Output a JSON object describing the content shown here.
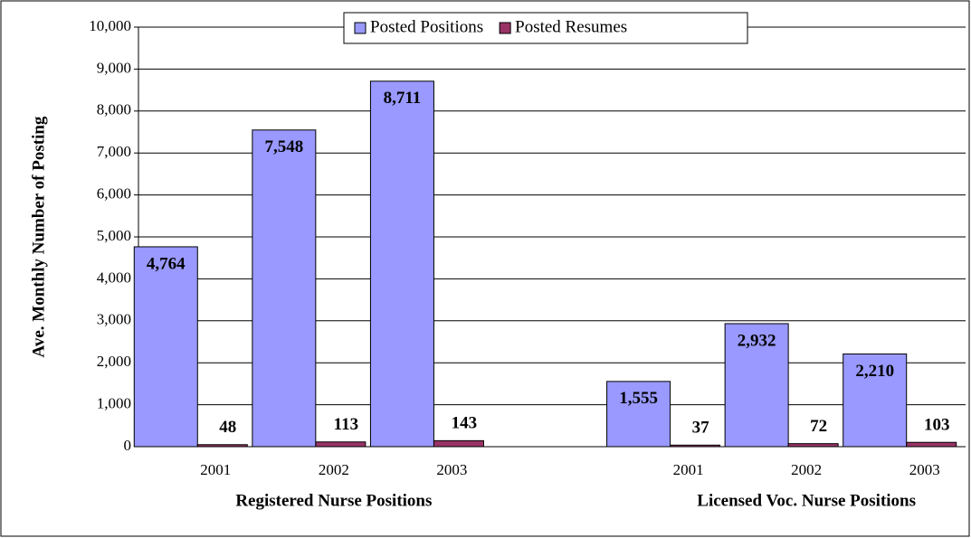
{
  "chart_data": {
    "type": "bar",
    "y_label": "Ave. Monthly Number of Posting",
    "categories": [
      "2001",
      "2002",
      "2003",
      null,
      "2001",
      "2002",
      "2003"
    ],
    "group_labels": [
      "Registered Nurse Positions",
      "Licensed Voc. Nurse Positions"
    ],
    "series": [
      {
        "name": "Posted Positions",
        "color": "#9999ff",
        "values": [
          4764,
          7548,
          8711,
          null,
          1555,
          2932,
          2210
        ],
        "value_labels": [
          "4,764",
          "7,548",
          "8,711",
          null,
          "1,555",
          "2,932",
          "2,210"
        ]
      },
      {
        "name": "Posted Resumes",
        "color": "#993366",
        "values": [
          48,
          113,
          143,
          null,
          37,
          72,
          103
        ]
      }
    ],
    "ylim": [
      0,
      10000
    ],
    "yticks": [
      0,
      {
        "value": 1000,
        "label": "1,000"
      },
      {
        "value": 2000,
        "label": "2,000"
      },
      {
        "value": 3000,
        "label": "3,000"
      },
      {
        "value": 4000,
        "label": "4,000"
      },
      {
        "value": 5000,
        "label": "5,000"
      },
      {
        "value": 6000,
        "label": "6,000"
      },
      {
        "value": 7000,
        "label": "7,000"
      },
      {
        "value": 8000,
        "label": "8,000"
      },
      {
        "value": 9000,
        "label": "9,000"
      },
      {
        "value": 10000,
        "label": "10,000"
      }
    ],
    "grid": true,
    "legend": "top"
  }
}
